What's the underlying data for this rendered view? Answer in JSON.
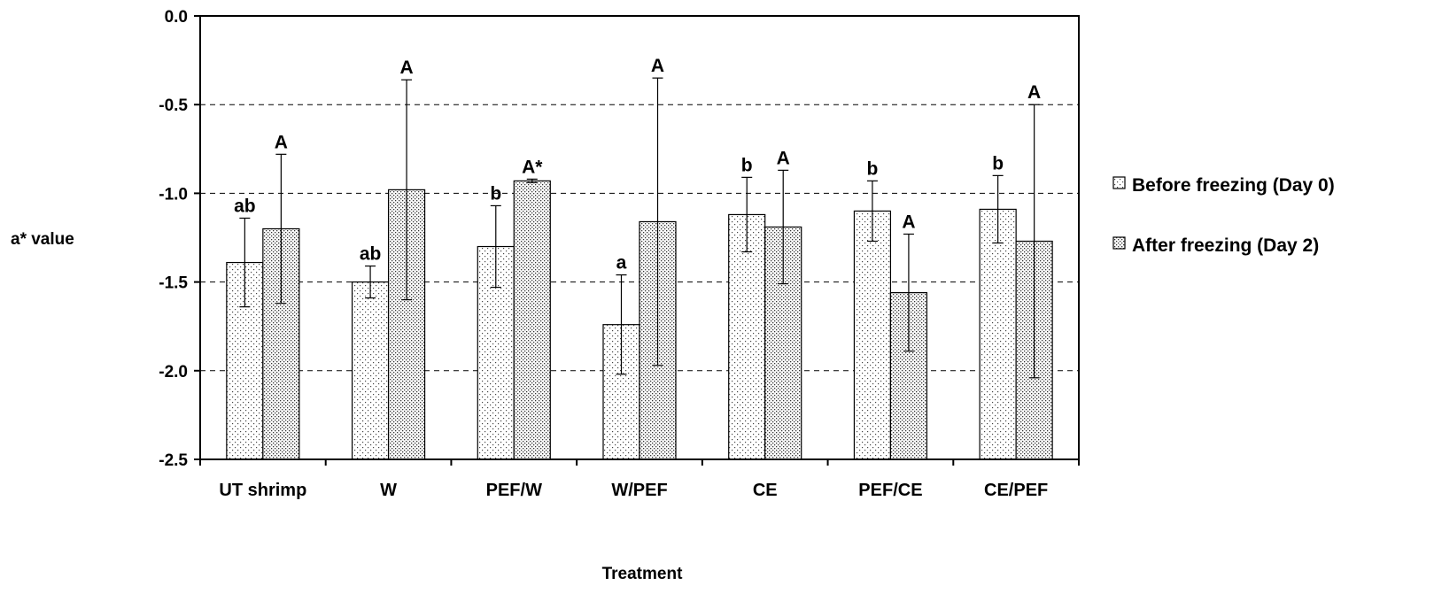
{
  "chart_data": {
    "type": "bar",
    "title": "",
    "xlabel": "Treatment",
    "ylabel": "a* value",
    "ylim": [
      -2.5,
      0.0
    ],
    "yticks": [
      0.0,
      -0.5,
      -1.0,
      -1.5,
      -2.0,
      -2.5
    ],
    "ytick_labels": [
      "0.0",
      "-0.5",
      "-1.0",
      "-1.5",
      "-2.0",
      "-2.5"
    ],
    "grid": "horizontal-dashed",
    "legend_position": "right",
    "categories": [
      "UT shrimp",
      "W",
      "PEF/W",
      "W/PEF",
      "CE",
      "PEF/CE",
      "CE/PEF"
    ],
    "series": [
      {
        "name": "Before freezing (Day 0)",
        "pattern": "light-dots",
        "values": [
          -1.39,
          -1.5,
          -1.3,
          -1.74,
          -1.12,
          -1.1,
          -1.09
        ],
        "errors": [
          0.25,
          0.09,
          0.23,
          0.28,
          0.21,
          0.17,
          0.19
        ],
        "labels": [
          "ab",
          "ab",
          "b",
          "a",
          "b",
          "b",
          "b"
        ]
      },
      {
        "name": "After freezing (Day 2)",
        "pattern": "dense-dots",
        "values": [
          -1.2,
          -0.98,
          -0.93,
          -1.16,
          -1.19,
          -1.56,
          -1.27
        ],
        "errors": [
          0.42,
          0.62,
          0.01,
          0.81,
          0.32,
          0.33,
          0.77
        ],
        "labels": [
          "A",
          "A",
          "A*",
          "A",
          "A",
          "A",
          "A"
        ]
      }
    ]
  }
}
